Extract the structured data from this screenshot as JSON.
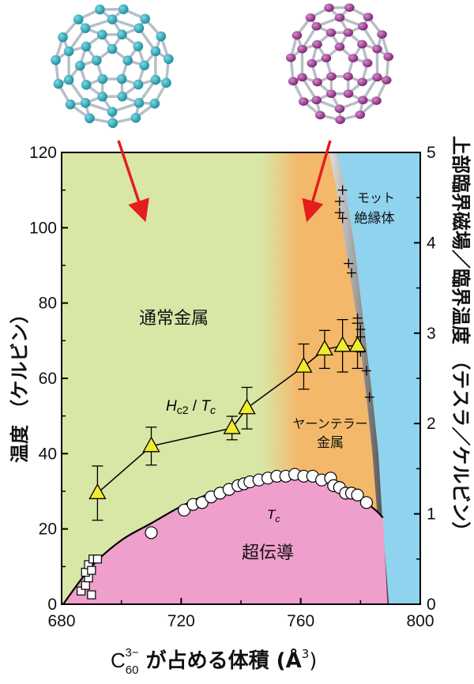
{
  "chart_data": {
    "type": "scatter",
    "x_axis": {
      "label_main": "C",
      "label_sub": "60",
      "label_sup": "3−",
      "label_rest": " が占める体積 (Å",
      "label_sup2": "3",
      "label_end": ")",
      "range": [
        680,
        800
      ],
      "ticks": [
        "680",
        "720",
        "760",
        "800"
      ]
    },
    "y_axis_left": {
      "label": "温度 （ケルビン）",
      "range": [
        0,
        120
      ],
      "ticks": [
        "0",
        "20",
        "40",
        "60",
        "80",
        "100",
        "120"
      ]
    },
    "y_axis_right": {
      "label": "上部臨界磁場／臨界温度 （テスラ／ケルビン）",
      "range": [
        0,
        5
      ],
      "ticks": [
        "0",
        "1",
        "2",
        "3",
        "4",
        "5"
      ]
    },
    "regions": [
      {
        "label": "通常金属",
        "color": "#d8e6a6"
      },
      {
        "label": "ヤーンテラー\n金属",
        "color": "#f4b86a"
      },
      {
        "label": "モット\n絶縁体",
        "color": "#8fd3ef"
      },
      {
        "label": "超伝導",
        "color": "#ef9fcc"
      }
    ],
    "tc_label": "T",
    "tc_sub": "c",
    "hc2_label_H": "H",
    "hc2_label_sub": "c2",
    "hc2_label_slash": " / ",
    "hc2_label_T": "T",
    "hc2_label_Tsub": "c",
    "tc_curve": [
      {
        "x": 680.5,
        "y": 0
      },
      {
        "x": 690,
        "y": 10
      },
      {
        "x": 700,
        "y": 17
      },
      {
        "x": 710,
        "y": 21.5
      },
      {
        "x": 720,
        "y": 26
      },
      {
        "x": 730,
        "y": 29.5
      },
      {
        "x": 740,
        "y": 32
      },
      {
        "x": 750,
        "y": 33.5
      },
      {
        "x": 760,
        "y": 34
      },
      {
        "x": 770,
        "y": 32
      },
      {
        "x": 780,
        "y": 28
      },
      {
        "x": 785,
        "y": 25
      },
      {
        "x": 787.5,
        "y": 23
      }
    ],
    "hc2_series": [
      {
        "x": 692,
        "y": 1.23,
        "err": 0.3
      },
      {
        "x": 710,
        "y": 1.75,
        "err": 0.21
      },
      {
        "x": 737,
        "y": 1.95,
        "err": 0.13
      },
      {
        "x": 742,
        "y": 2.17,
        "err": 0.23
      },
      {
        "x": 761,
        "y": 2.63,
        "err": 0.25
      },
      {
        "x": 768,
        "y": 2.82,
        "err": 0.21
      },
      {
        "x": 774,
        "y": 2.86,
        "err": 0.29
      },
      {
        "x": 779,
        "y": 2.86,
        "err": 0.25
      }
    ],
    "tc_circles": [
      {
        "x": 710,
        "y": 19
      },
      {
        "x": 721,
        "y": 25
      },
      {
        "x": 724,
        "y": 26.5
      },
      {
        "x": 727,
        "y": 27
      },
      {
        "x": 730,
        "y": 28.5
      },
      {
        "x": 733,
        "y": 29.5
      },
      {
        "x": 736,
        "y": 30.5
      },
      {
        "x": 739,
        "y": 31.5
      },
      {
        "x": 741,
        "y": 32
      },
      {
        "x": 743,
        "y": 32.5
      },
      {
        "x": 746,
        "y": 33
      },
      {
        "x": 749,
        "y": 33.5
      },
      {
        "x": 752,
        "y": 34
      },
      {
        "x": 755,
        "y": 34
      },
      {
        "x": 758,
        "y": 34.5
      },
      {
        "x": 761,
        "y": 34
      },
      {
        "x": 764,
        "y": 34
      },
      {
        "x": 767,
        "y": 33
      },
      {
        "x": 770,
        "y": 33.5
      },
      {
        "x": 771,
        "y": 31.5
      },
      {
        "x": 773,
        "y": 31
      },
      {
        "x": 775,
        "y": 29.5
      },
      {
        "x": 777,
        "y": 29.5
      },
      {
        "x": 779,
        "y": 29
      },
      {
        "x": 782,
        "y": 27
      }
    ],
    "tc_squares": [
      {
        "x": 686.5,
        "y": 3.5
      },
      {
        "x": 688,
        "y": 5
      },
      {
        "x": 689,
        "y": 7
      },
      {
        "x": 688,
        "y": 8.5
      },
      {
        "x": 689,
        "y": 10.5
      },
      {
        "x": 690,
        "y": 9
      },
      {
        "x": 690.5,
        "y": 12
      },
      {
        "x": 692,
        "y": 12
      },
      {
        "x": 690,
        "y": 2.5
      }
    ],
    "mott_crosses": [
      {
        "x": 774,
        "y": 110
      },
      {
        "x": 773,
        "y": 107
      },
      {
        "x": 773,
        "y": 104
      },
      {
        "x": 774,
        "y": 102.5
      },
      {
        "x": 776,
        "y": 90.5
      },
      {
        "x": 777,
        "y": 88
      },
      {
        "x": 779,
        "y": 76
      },
      {
        "x": 780,
        "y": 73
      },
      {
        "x": 780,
        "y": 71
      },
      {
        "x": 780,
        "y": 67
      },
      {
        "x": 782,
        "y": 62
      },
      {
        "x": 783,
        "y": 55
      }
    ],
    "molecule_colors": [
      "#1fa0b0",
      "#9c2c8a"
    ],
    "arrow_color": "#e41d1d"
  }
}
